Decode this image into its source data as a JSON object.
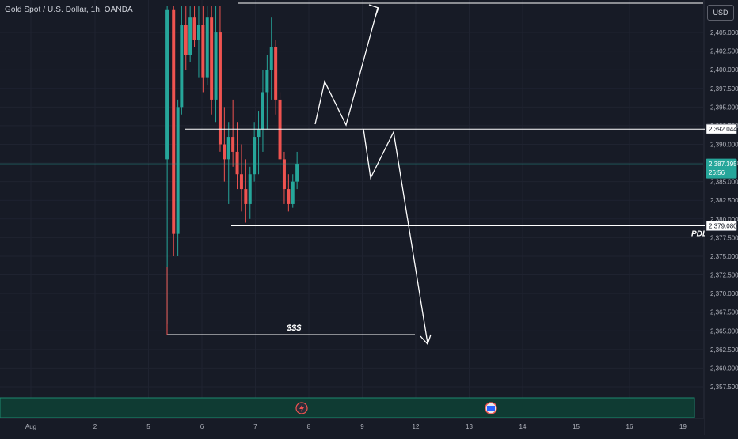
{
  "header": {
    "title": "Gold Spot / U.S. Dollar, 1h, OANDA",
    "currency": "USD"
  },
  "price_scale": {
    "labels": [
      "2,405.000",
      "2,402.500",
      "2,400.000",
      "2,397.500",
      "2,395.000",
      "2,392.500",
      "2,390.000",
      "2,387.500",
      "2,385.000",
      "2,382.500",
      "2,380.000",
      "2,377.500",
      "2,375.000",
      "2,372.500",
      "2,370.000",
      "2,367.500",
      "2,365.000",
      "2,362.500",
      "2,360.000",
      "2,357.500"
    ],
    "values": [
      2405,
      2402.5,
      2400,
      2397.5,
      2395,
      2392.5,
      2390,
      2387.5,
      2385,
      2382.5,
      2380,
      2377.5,
      2375,
      2372.5,
      2370,
      2367.5,
      2365,
      2362.5,
      2360,
      2357.5
    ]
  },
  "time_scale": {
    "labels": [
      "Aug",
      "2",
      "5",
      "6",
      "7",
      "8",
      "9",
      "12",
      "13",
      "14",
      "15",
      "16",
      "19"
    ],
    "positions": [
      0.8,
      2,
      3,
      4,
      5,
      6,
      7,
      8,
      9,
      10,
      11,
      12,
      13
    ]
  },
  "markers": {
    "level_high": {
      "label": "2,392.044",
      "value": 2392.044
    },
    "current": {
      "label": "2,387.395",
      "countdown": "26:56",
      "value": 2387.395
    },
    "level_low": {
      "label": "2,379.080",
      "value": 2379.08
    },
    "pdl": {
      "text": "PDL"
    },
    "liquidity": {
      "text": "$$$",
      "value": 2364.5
    }
  },
  "colors": {
    "bg": "#171b26",
    "up": "#26a69a",
    "down": "#ef5350",
    "line": "#ffffff",
    "axis_text": "#b2b5be",
    "current_badge": "#26a69a",
    "volume_bar": "#0f3b33"
  },
  "chart_data": {
    "type": "candlestick",
    "title": "Gold Spot / U.S. Dollar, 1h, OANDA",
    "xlabel": "",
    "ylabel": "",
    "ylim": [
      2356.5,
      2408.5
    ],
    "series": [
      {
        "name": "Gold Spot / U.S. Dollar",
        "candles": [
          {
            "t": 3.35,
            "o": 2388,
            "h": 2408.5,
            "l": 2366,
            "c": 2408
          },
          {
            "t": 3.47,
            "o": 2408,
            "h": 2408.5,
            "l": 2375,
            "c": 2378
          },
          {
            "t": 3.55,
            "o": 2378,
            "h": 2396,
            "l": 2375,
            "c": 2395
          },
          {
            "t": 3.62,
            "o": 2395,
            "h": 2408.5,
            "l": 2394,
            "c": 2406
          },
          {
            "t": 3.7,
            "o": 2406,
            "h": 2408.5,
            "l": 2400,
            "c": 2402
          },
          {
            "t": 3.78,
            "o": 2402,
            "h": 2408.5,
            "l": 2401,
            "c": 2407
          },
          {
            "t": 3.86,
            "o": 2407,
            "h": 2408.5,
            "l": 2403,
            "c": 2404
          },
          {
            "t": 3.94,
            "o": 2404,
            "h": 2408.5,
            "l": 2399,
            "c": 2406
          },
          {
            "t": 4.02,
            "o": 2406,
            "h": 2408.5,
            "l": 2397,
            "c": 2399
          },
          {
            "t": 4.1,
            "o": 2399,
            "h": 2408.5,
            "l": 2398,
            "c": 2407
          },
          {
            "t": 4.18,
            "o": 2407,
            "h": 2408.5,
            "l": 2394,
            "c": 2396
          },
          {
            "t": 4.26,
            "o": 2396,
            "h": 2408.5,
            "l": 2393,
            "c": 2405
          },
          {
            "t": 4.34,
            "o": 2405,
            "h": 2408.5,
            "l": 2389,
            "c": 2390
          },
          {
            "t": 4.42,
            "o": 2390,
            "h": 2395,
            "l": 2385,
            "c": 2388
          },
          {
            "t": 4.5,
            "o": 2388,
            "h": 2393,
            "l": 2382,
            "c": 2391
          },
          {
            "t": 4.58,
            "o": 2391,
            "h": 2396,
            "l": 2387,
            "c": 2389
          },
          {
            "t": 4.66,
            "o": 2389,
            "h": 2393,
            "l": 2384,
            "c": 2386
          },
          {
            "t": 4.74,
            "o": 2386,
            "h": 2390,
            "l": 2381,
            "c": 2384
          },
          {
            "t": 4.82,
            "o": 2384,
            "h": 2388,
            "l": 2379.5,
            "c": 2382
          },
          {
            "t": 4.9,
            "o": 2382,
            "h": 2387,
            "l": 2380,
            "c": 2386
          },
          {
            "t": 4.98,
            "o": 2386,
            "h": 2393,
            "l": 2385,
            "c": 2391
          },
          {
            "t": 5.06,
            "o": 2391,
            "h": 2394.5,
            "l": 2386,
            "c": 2392
          },
          {
            "t": 5.14,
            "o": 2392,
            "h": 2400,
            "l": 2389,
            "c": 2397
          },
          {
            "t": 5.22,
            "o": 2397,
            "h": 2402,
            "l": 2392,
            "c": 2400
          },
          {
            "t": 5.3,
            "o": 2400,
            "h": 2407,
            "l": 2396,
            "c": 2403
          },
          {
            "t": 5.38,
            "o": 2403,
            "h": 2404,
            "l": 2394,
            "c": 2396
          },
          {
            "t": 5.46,
            "o": 2396,
            "h": 2397,
            "l": 2386,
            "c": 2388
          },
          {
            "t": 5.54,
            "o": 2388,
            "h": 2389,
            "l": 2382,
            "c": 2384
          },
          {
            "t": 5.62,
            "o": 2384,
            "h": 2386,
            "l": 2381,
            "c": 2382
          },
          {
            "t": 5.7,
            "o": 2382,
            "h": 2386,
            "l": 2381.5,
            "c": 2385
          },
          {
            "t": 5.78,
            "o": 2385,
            "h": 2389,
            "l": 2384,
            "c": 2387.4
          }
        ]
      }
    ]
  }
}
